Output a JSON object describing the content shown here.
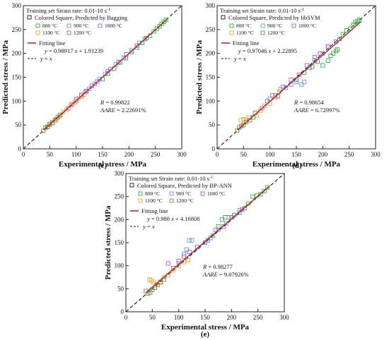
{
  "chart_data": [
    {
      "type": "scatter",
      "panel_label": "(c)",
      "xlabel": "Experimental stress / MPa",
      "ylabel": "Predicted stress / MPa",
      "xlim": [
        0,
        300
      ],
      "ylim": [
        0,
        300
      ],
      "xticks": [
        0,
        50,
        100,
        150,
        200,
        250,
        300
      ],
      "yticks": [
        0,
        50,
        100,
        150,
        200,
        250,
        300
      ],
      "legend": {
        "head": "Training set",
        "strain": "Strain rate: 0.01-10 s",
        "strain_exp": "-1",
        "square_title": "Colored Square, Predicted by Bagging",
        "fit_label": "Fitting line",
        "fit_eq": "y = 0.98917 x + 1.91239",
        "diag_label": "y = x"
      },
      "stats": {
        "r": "R = 0.99822",
        "aare": "AARE = 2.22691%"
      },
      "fit": {
        "slope": 0.98917,
        "intercept": 1.91239
      },
      "series": [
        {
          "name": "800 °C",
          "color": "#3aa84a",
          "points": [
            [
              150,
              146
            ],
            [
              160,
              158
            ],
            [
              172,
              168
            ],
            [
              183,
              181
            ],
            [
              194,
              190
            ],
            [
              205,
              203
            ],
            [
              215,
              212
            ],
            [
              225,
              222
            ],
            [
              233,
              232
            ],
            [
              240,
              237
            ],
            [
              247,
              246
            ],
            [
              253,
              252
            ],
            [
              258,
              257
            ],
            [
              262,
              262
            ],
            [
              266,
              266
            ],
            [
              270,
              270
            ]
          ]
        },
        {
          "name": "900 °C",
          "color": "#5a9be0",
          "points": [
            [
              100,
              100
            ],
            [
              110,
              110
            ],
            [
              118,
              120
            ],
            [
              125,
              126
            ],
            [
              135,
              136
            ],
            [
              145,
              146
            ],
            [
              155,
              157
            ],
            [
              165,
              167
            ],
            [
              175,
              177
            ],
            [
              190,
              191
            ],
            [
              205,
              206
            ],
            [
              220,
              222
            ]
          ]
        },
        {
          "name": "1000 °C",
          "color": "#b45ad0",
          "points": [
            [
              85,
              85
            ],
            [
              92,
              93
            ],
            [
              100,
              104
            ],
            [
              110,
              113
            ],
            [
              120,
              121
            ],
            [
              130,
              132
            ],
            [
              140,
              141
            ],
            [
              160,
              162
            ],
            [
              180,
              182
            ],
            [
              195,
              198
            ],
            [
              215,
              216
            ],
            [
              230,
              230
            ]
          ]
        },
        {
          "name": "1100 °C",
          "color": "#e8a83a",
          "points": [
            [
              45,
              46
            ],
            [
              50,
              50
            ],
            [
              55,
              56
            ],
            [
              62,
              62
            ],
            [
              68,
              68
            ],
            [
              75,
              77
            ],
            [
              82,
              82
            ],
            [
              90,
              91
            ],
            [
              98,
              97
            ],
            [
              105,
              106
            ],
            [
              115,
              114
            ]
          ]
        },
        {
          "name": "1200 °C",
          "color": "#6d8a52",
          "points": [
            [
              38,
              38
            ],
            [
              42,
              44
            ],
            [
              46,
              46
            ],
            [
              50,
              52
            ],
            [
              55,
              54
            ],
            [
              60,
              60
            ],
            [
              65,
              66
            ],
            [
              70,
              71
            ]
          ]
        }
      ]
    },
    {
      "type": "scatter",
      "panel_label": "(d)",
      "xlabel": "Experimental stress / MPa",
      "ylabel": "Predicted stress / MPa",
      "xlim": [
        0,
        300
      ],
      "ylim": [
        0,
        300
      ],
      "xticks": [
        0,
        50,
        100,
        150,
        200,
        250,
        300
      ],
      "yticks": [
        0,
        50,
        100,
        150,
        200,
        250,
        300
      ],
      "legend": {
        "head": "Training set",
        "strain": "Strain rate: 0.01-10 s",
        "strain_exp": "-1",
        "square_title": "Colored Square, Predicted by libSVM",
        "fit_label": "Fitting line",
        "fit_eq": "y = 0.97046 x + 2.22895",
        "diag_label": "y = x"
      },
      "stats": {
        "r": "R = 0.98654",
        "aare": "AARE = 6.72997%"
      },
      "fit": {
        "slope": 0.97046,
        "intercept": 2.22895
      },
      "series": [
        {
          "name": "800 °C",
          "color": "#3aa84a",
          "points": [
            [
              150,
              145
            ],
            [
              165,
              160
            ],
            [
              180,
              172
            ],
            [
              190,
              183
            ],
            [
              200,
              175
            ],
            [
              210,
              185
            ],
            [
              215,
              195
            ],
            [
              220,
              200
            ],
            [
              225,
              205
            ],
            [
              228,
              208
            ],
            [
              232,
              230
            ],
            [
              238,
              240
            ],
            [
              245,
              248
            ],
            [
              252,
              252
            ],
            [
              258,
              260
            ],
            [
              262,
              265
            ],
            [
              266,
              268
            ],
            [
              270,
              270
            ]
          ]
        },
        {
          "name": "900 °C",
          "color": "#5a9be0",
          "points": [
            [
              100,
              105
            ],
            [
              110,
              112
            ],
            [
              120,
              125
            ],
            [
              130,
              128
            ],
            [
              140,
              135
            ],
            [
              150,
              140
            ],
            [
              160,
              135
            ],
            [
              165,
              140
            ],
            [
              175,
              170
            ],
            [
              185,
              185
            ],
            [
              200,
              200
            ],
            [
              210,
              212
            ]
          ]
        },
        {
          "name": "1000 °C",
          "color": "#b45ad0",
          "points": [
            [
              85,
              85
            ],
            [
              95,
              100
            ],
            [
              105,
              112
            ],
            [
              115,
              110
            ],
            [
              125,
              130
            ],
            [
              140,
              145
            ],
            [
              155,
              155
            ],
            [
              170,
              175
            ],
            [
              185,
              192
            ],
            [
              195,
              200
            ],
            [
              210,
              215
            ],
            [
              225,
              225
            ]
          ]
        },
        {
          "name": "1100 °C",
          "color": "#e8a83a",
          "points": [
            [
              45,
              60
            ],
            [
              50,
              62
            ],
            [
              55,
              60
            ],
            [
              60,
              65
            ],
            [
              68,
              66
            ],
            [
              75,
              70
            ],
            [
              82,
              80
            ],
            [
              90,
              90
            ],
            [
              100,
              95
            ],
            [
              110,
              108
            ],
            [
              118,
              120
            ]
          ]
        },
        {
          "name": "1200 °C",
          "color": "#6d8a52",
          "points": [
            [
              38,
              38
            ],
            [
              42,
              45
            ],
            [
              46,
              48
            ],
            [
              50,
              50
            ],
            [
              55,
              56
            ],
            [
              62,
              60
            ],
            [
              68,
              66
            ],
            [
              72,
              75
            ]
          ]
        }
      ]
    },
    {
      "type": "scatter",
      "panel_label": "(e)",
      "xlabel": "Experimental stress / MPa",
      "ylabel": "Predicted stress / MPa",
      "xlim": [
        0,
        300
      ],
      "ylim": [
        0,
        300
      ],
      "xticks": [
        0,
        50,
        100,
        150,
        200,
        250,
        300
      ],
      "yticks": [
        0,
        50,
        100,
        150,
        200,
        250,
        300
      ],
      "legend": {
        "head": "Training set",
        "strain": "Strain rate: 0.01-10 s",
        "strain_exp": "-1",
        "square_title": "Colored Square, Predicted by BP-ANN",
        "fit_label": "Fitting line",
        "fit_eq": "y = 0.988 x + 4.16808",
        "diag_label": "y = x"
      },
      "stats": {
        "r": "R = 0.98277",
        "aare": "AARE = 9.07926%"
      },
      "fit": {
        "slope": 0.988,
        "intercept": 4.16808
      },
      "series": [
        {
          "name": "800 °C",
          "color": "#3aa84a",
          "points": [
            [
              150,
              150
            ],
            [
              165,
              165
            ],
            [
              175,
              185
            ],
            [
              182,
              200
            ],
            [
              188,
              205
            ],
            [
              195,
              205
            ],
            [
              205,
              210
            ],
            [
              215,
              215
            ],
            [
              225,
              225
            ],
            [
              232,
              235
            ],
            [
              240,
              250
            ],
            [
              248,
              252
            ],
            [
              255,
              255
            ],
            [
              262,
              262
            ],
            [
              268,
              270
            ]
          ]
        },
        {
          "name": "900 °C",
          "color": "#5a9be0",
          "points": [
            [
              100,
              105
            ],
            [
              110,
              125
            ],
            [
              115,
              135
            ],
            [
              120,
              155
            ],
            [
              125,
              155
            ],
            [
              135,
              140
            ],
            [
              150,
              150
            ],
            [
              160,
              160
            ],
            [
              175,
              178
            ],
            [
              190,
              192
            ],
            [
              205,
              210
            ],
            [
              215,
              220
            ]
          ]
        },
        {
          "name": "1000 °C",
          "color": "#b45ad0",
          "points": [
            [
              80,
              105
            ],
            [
              90,
              95
            ],
            [
              100,
              110
            ],
            [
              110,
              120
            ],
            [
              120,
              130
            ],
            [
              135,
              140
            ],
            [
              155,
              155
            ],
            [
              170,
              178
            ],
            [
              185,
              185
            ],
            [
              200,
              205
            ],
            [
              220,
              222
            ]
          ]
        },
        {
          "name": "1100 °C",
          "color": "#e8a83a",
          "points": [
            [
              45,
              70
            ],
            [
              48,
              68
            ],
            [
              52,
              65
            ],
            [
              58,
              60
            ],
            [
              65,
              65
            ],
            [
              72,
              75
            ],
            [
              80,
              80
            ],
            [
              90,
              90
            ],
            [
              100,
              100
            ],
            [
              110,
              108
            ],
            [
              118,
              112
            ]
          ]
        },
        {
          "name": "1200 °C",
          "color": "#6d8a52",
          "points": [
            [
              38,
              45
            ],
            [
              42,
              40
            ],
            [
              46,
              42
            ],
            [
              50,
              48
            ],
            [
              55,
              52
            ],
            [
              60,
              58
            ],
            [
              66,
              64
            ],
            [
              72,
              70
            ]
          ]
        }
      ]
    }
  ]
}
